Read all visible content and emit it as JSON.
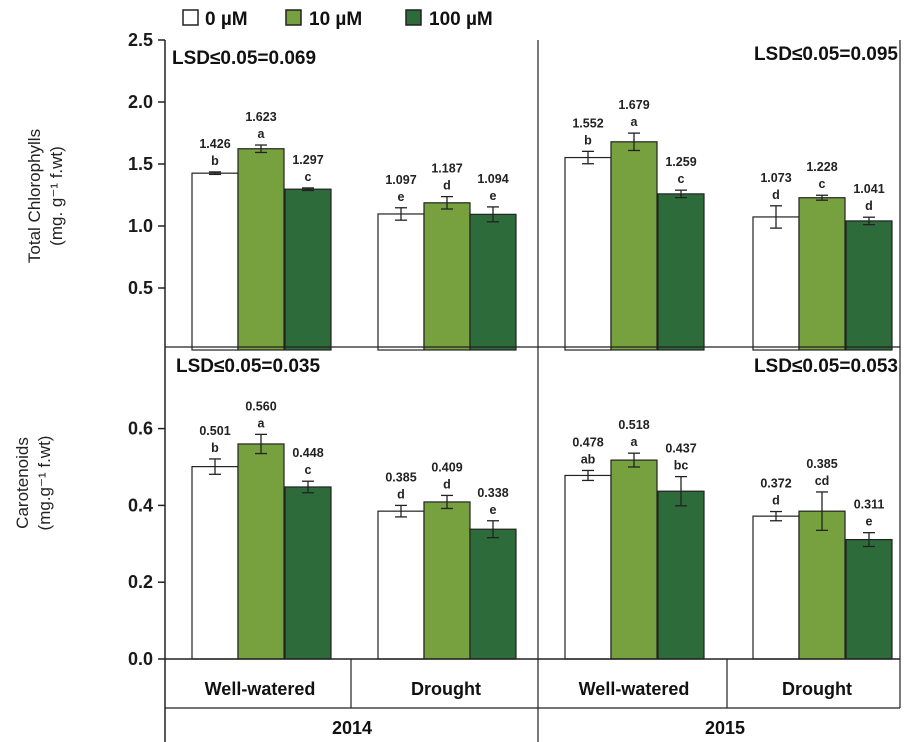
{
  "chart_data": [
    {
      "type": "bar",
      "ylabel_line1": "Total Chlorophylls",
      "ylabel_line2": "(mg. g⁻¹ f.wt)",
      "ylim": [
        0,
        2.5
      ],
      "yticks": [
        "0.5",
        "1.0",
        "1.5",
        "2.0",
        "2.5"
      ],
      "lsd_left": "LSD≤0.05=0.069",
      "lsd_right": "LSD≤0.05=0.095",
      "groups": [
        {
          "bars": [
            {
              "value": 1.426,
              "label": "1.426",
              "letter": "b",
              "err": 0.01
            },
            {
              "value": 1.623,
              "label": "1.623",
              "letter": "a",
              "err": 0.03
            },
            {
              "value": 1.297,
              "label": "1.297",
              "letter": "c",
              "err": 0.01
            }
          ]
        },
        {
          "bars": [
            {
              "value": 1.097,
              "label": "1.097",
              "letter": "e",
              "err": 0.05
            },
            {
              "value": 1.187,
              "label": "1.187",
              "letter": "d",
              "err": 0.05
            },
            {
              "value": 1.094,
              "label": "1.094",
              "letter": "e",
              "err": 0.06
            }
          ]
        },
        {
          "bars": [
            {
              "value": 1.552,
              "label": "1.552",
              "letter": "b",
              "err": 0.05
            },
            {
              "value": 1.679,
              "label": "1.679",
              "letter": "a",
              "err": 0.07
            },
            {
              "value": 1.259,
              "label": "1.259",
              "letter": "c",
              "err": 0.03
            }
          ]
        },
        {
          "bars": [
            {
              "value": 1.073,
              "label": "1.073",
              "letter": "d",
              "err": 0.09
            },
            {
              "value": 1.228,
              "label": "1.228",
              "letter": "c",
              "err": 0.02
            },
            {
              "value": 1.041,
              "label": "1.041",
              "letter": "d",
              "err": 0.03
            }
          ]
        }
      ]
    },
    {
      "type": "bar",
      "ylabel_line1": "Carotenoids",
      "ylabel_line2": "(mg.g⁻¹ f.wt)",
      "ylim": [
        0,
        0.7
      ],
      "yticks": [
        "0.0",
        "0.2",
        "0.4",
        "0.6"
      ],
      "lsd_left": "LSD≤0.05=0.035",
      "lsd_right": "LSD≤0.05=0.053",
      "groups": [
        {
          "bars": [
            {
              "value": 0.501,
              "label": "0.501",
              "letter": "b",
              "err": 0.02
            },
            {
              "value": 0.56,
              "label": "0.560",
              "letter": "a",
              "err": 0.025
            },
            {
              "value": 0.448,
              "label": "0.448",
              "letter": "c",
              "err": 0.015
            }
          ]
        },
        {
          "bars": [
            {
              "value": 0.385,
              "label": "0.385",
              "letter": "d",
              "err": 0.015
            },
            {
              "value": 0.409,
              "label": "0.409",
              "letter": "d",
              "err": 0.017
            },
            {
              "value": 0.338,
              "label": "0.338",
              "letter": "e",
              "err": 0.022
            }
          ]
        },
        {
          "bars": [
            {
              "value": 0.478,
              "label": "0.478",
              "letter": "ab",
              "err": 0.013
            },
            {
              "value": 0.518,
              "label": "0.518",
              "letter": "a",
              "err": 0.018
            },
            {
              "value": 0.437,
              "label": "0.437",
              "letter": "bc",
              "err": 0.038
            }
          ]
        },
        {
          "bars": [
            {
              "value": 0.372,
              "label": "0.372",
              "letter": "d",
              "err": 0.012
            },
            {
              "value": 0.385,
              "label": "0.385",
              "letter": "cd",
              "err": 0.05
            },
            {
              "value": 0.311,
              "label": "0.311",
              "letter": "e",
              "err": 0.018
            }
          ]
        }
      ]
    }
  ],
  "legend": [
    {
      "name": "0 µM",
      "color": "#ffffff"
    },
    {
      "name": "10 µM",
      "color": "#77a03f"
    },
    {
      "name": "100 µM",
      "color": "#2d6b3a"
    }
  ],
  "categories": [
    "Well-watered",
    "Drought",
    "Well-watered",
    "Drought"
  ],
  "years": [
    "2014",
    "2015"
  ]
}
